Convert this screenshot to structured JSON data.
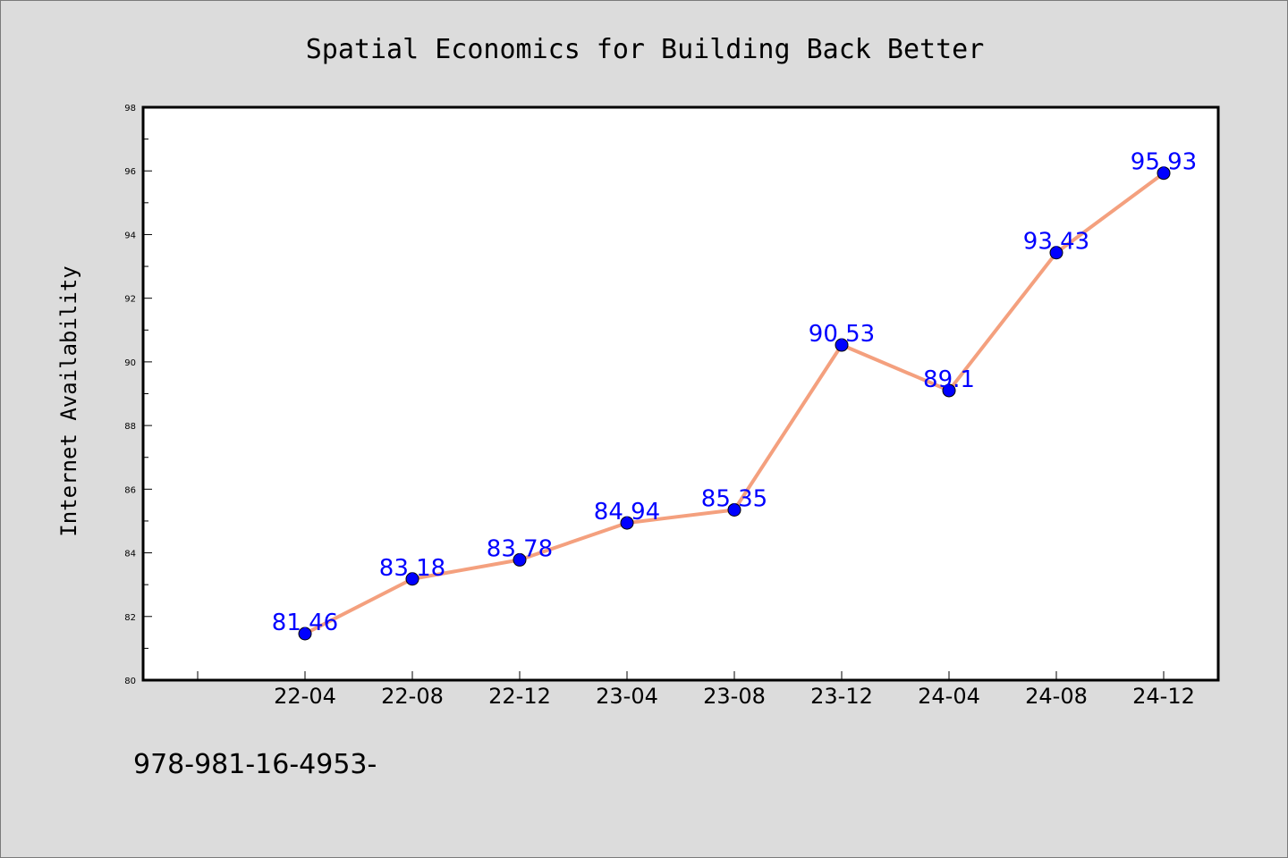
{
  "chart_data": {
    "type": "line",
    "title": "Spatial Economics for Building Back Better",
    "xlabel": "",
    "ylabel": "Internet Availability",
    "categories": [
      "22-04",
      "22-08",
      "22-12",
      "23-04",
      "23-08",
      "23-12",
      "24-04",
      "24-08",
      "24-12"
    ],
    "series": [
      {
        "values": [
          81.46,
          83.18,
          83.78,
          84.94,
          85.35,
          90.53,
          89.1,
          93.43,
          95.93
        ],
        "data_labels": [
          "81.46",
          "83.18",
          "83.78",
          "84.94",
          "85.35",
          "90.53",
          "89.1",
          "93.43",
          "95.93"
        ],
        "line_color": "#f4a07e",
        "marker_color": "#0000ff"
      }
    ],
    "ylim": [
      80,
      98
    ],
    "yticks": [
      "80",
      "82",
      "84",
      "86",
      "88",
      "90",
      "92",
      "94",
      "96",
      "98"
    ],
    "grid": false,
    "legend": "none"
  },
  "footnote": "978-981-16-4953-"
}
